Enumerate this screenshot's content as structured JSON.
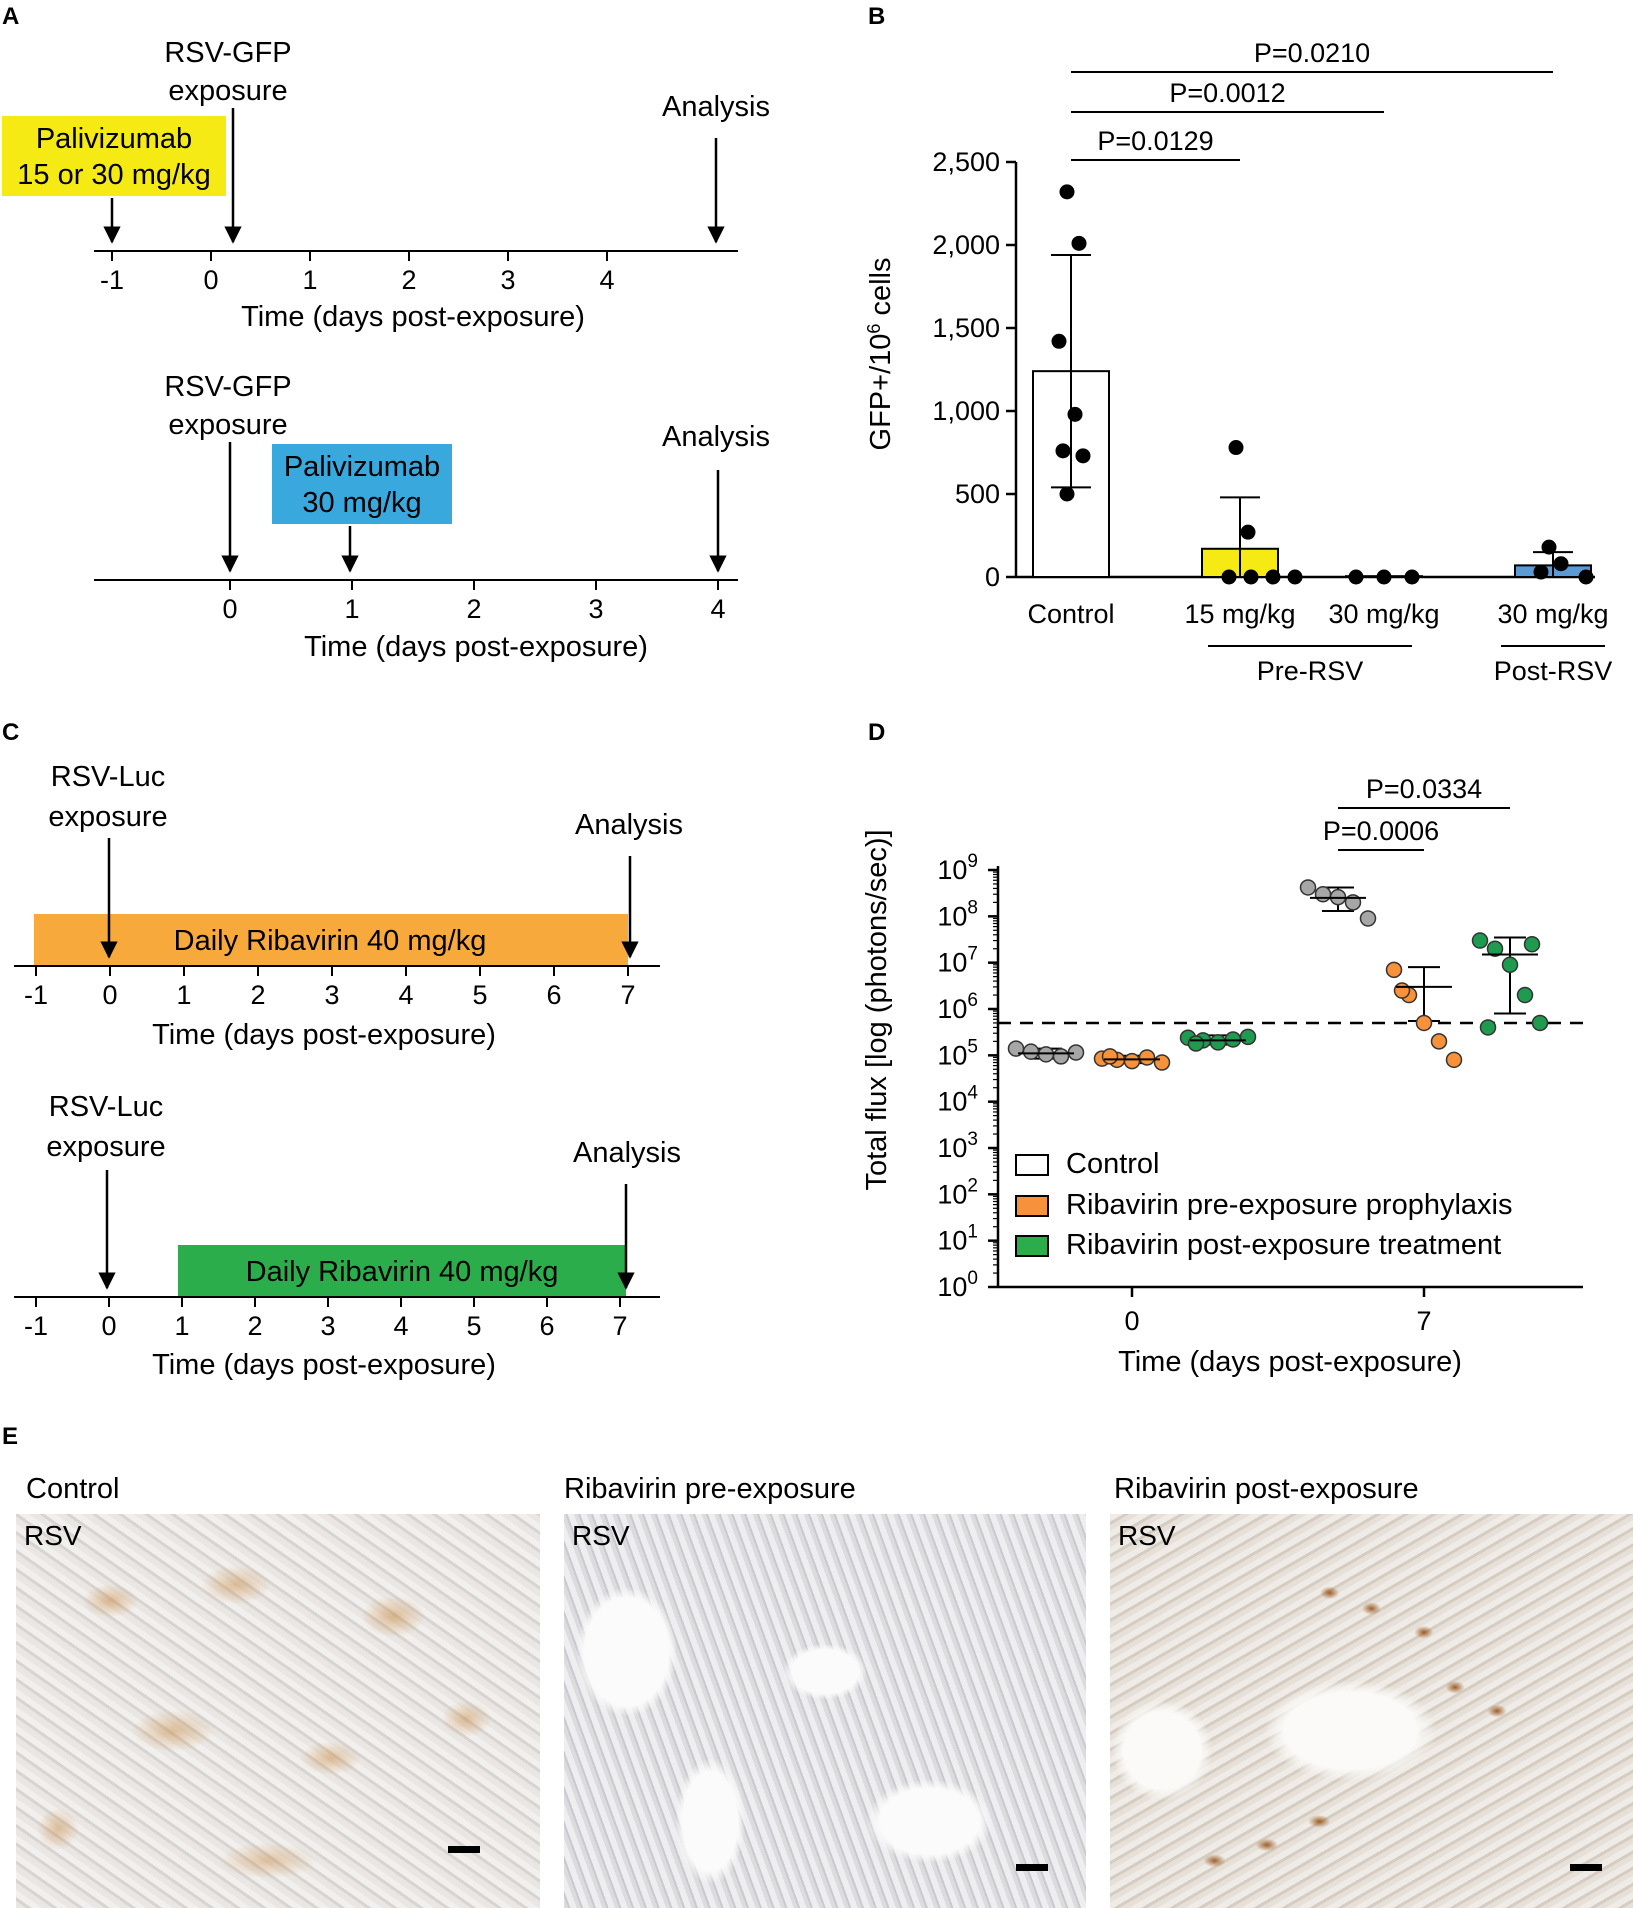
{
  "panel_letters": {
    "a": "A",
    "b": "B",
    "c": "C",
    "d": "D",
    "e": "E"
  },
  "timelines": {
    "axis_label": "Time (days post-exposure)",
    "arrow_analysis": "Analysis",
    "A_top": {
      "ticks": [
        "-1",
        "0",
        "1",
        "2",
        "3",
        "4"
      ],
      "exposure": [
        "RSV-GFP",
        "exposure"
      ],
      "drug": [
        "Palivizumab",
        "15 or 30 mg/kg"
      ],
      "drug_color": "#f5ea14"
    },
    "A_bottom": {
      "ticks": [
        "0",
        "1",
        "2",
        "3",
        "4"
      ],
      "exposure": [
        "RSV-GFP",
        "exposure"
      ],
      "drug": [
        "Palivizumab",
        "30 mg/kg"
      ],
      "drug_color": "#38a8dd"
    },
    "C_top": {
      "ticks": [
        "-1",
        "0",
        "1",
        "2",
        "3",
        "4",
        "5",
        "6",
        "7"
      ],
      "exposure": [
        "RSV-Luc",
        "exposure"
      ],
      "drug": "Daily Ribavirin 40 mg/kg",
      "drug_color": "#f7a93b"
    },
    "C_bottom": {
      "ticks": [
        "-1",
        "0",
        "1",
        "2",
        "3",
        "4",
        "5",
        "6",
        "7"
      ],
      "exposure": [
        "RSV-Luc",
        "exposure"
      ],
      "drug": "Daily Ribavirin 40 mg/kg",
      "drug_color": "#2cad4b"
    }
  },
  "chart_data": [
    {
      "panel": "B",
      "type": "bar",
      "ylabel_main": "GFP+/10",
      "ylabel_sup": "6",
      "ylabel_tail": " cells",
      "ylim": [
        0,
        2500
      ],
      "yticks": [
        "0",
        "500",
        "1,000",
        "1,500",
        "2,000",
        "2,500"
      ],
      "categories": [
        "Control",
        "15 mg/kg",
        "30 mg/kg",
        "30 mg/kg"
      ],
      "groups": [
        "Pre-RSV",
        "Post-RSV"
      ],
      "bars": [
        {
          "mean": 1240,
          "sd": 700,
          "color": "#ffffff",
          "points": [
            2320,
            2010,
            1420,
            980,
            760,
            730,
            500
          ]
        },
        {
          "mean": 170,
          "sd": 310,
          "color": "#f5ea14",
          "points": [
            780,
            270,
            0,
            0,
            0,
            0
          ]
        },
        {
          "mean": 5,
          "sd": 0,
          "color": "#ffffff",
          "points": [
            0,
            0,
            0
          ]
        },
        {
          "mean": 70,
          "sd": 80,
          "color": "#5b9bd5",
          "points": [
            180,
            80,
            30,
            0
          ]
        }
      ],
      "comparisons": [
        {
          "label": "P=0.0129",
          "from": 0,
          "to": 1
        },
        {
          "label": "P=0.0012",
          "from": 0,
          "to": 2
        },
        {
          "label": "P=0.0210",
          "from": 0,
          "to": 3
        }
      ]
    },
    {
      "panel": "D",
      "type": "scatter",
      "xlabel": "Time (days post-exposure)",
      "ylabel": "Total flux [log (photons/sec)]",
      "y_scale": "log",
      "ylim": [
        1,
        1000000000
      ],
      "ytick_base": "10",
      "ytick_exponents": [
        "0",
        "1",
        "2",
        "3",
        "4",
        "5",
        "6",
        "7",
        "8",
        "9"
      ],
      "categories": [
        "0",
        "7"
      ],
      "threshold": 500000,
      "series": [
        {
          "name": "Control",
          "color": "#a6a6a6",
          "day0": {
            "points": [
              140000,
              120000,
              105000,
              95000,
              115000
            ],
            "mean": 110000,
            "sd_low": 85000,
            "sd_high": 140000
          },
          "day7": {
            "points": [
              420000000,
              300000000,
              260000000,
              200000000,
              90000000
            ],
            "mean": 250000000,
            "sd_low": 130000000,
            "sd_high": 420000000
          }
        },
        {
          "name": "Ribavirin pre-exposure prophylaxis",
          "color": "#f7923a",
          "day0": {
            "points": [
              85000,
              80000,
              75000,
              90000,
              70000,
              95000
            ],
            "mean": 82000,
            "sd_low": 68000,
            "sd_high": 98000
          },
          "day7": {
            "points": [
              7000000,
              2000000,
              500000,
              200000,
              80000,
              2500000
            ],
            "mean": 3000000,
            "sd_low": 550000,
            "sd_high": 8000000
          }
        },
        {
          "name": "Ribavirin post-exposure treatment",
          "color": "#1e9b4f",
          "day0": {
            "points": [
              240000,
              210000,
              190000,
              220000,
              250000,
              180000
            ],
            "mean": 210000,
            "sd_low": 170000,
            "sd_high": 270000
          },
          "day7": {
            "points": [
              30000000,
              20000000,
              9000000,
              2000000,
              500000,
              400000,
              25000000
            ],
            "mean": 15000000,
            "sd_low": 800000,
            "sd_high": 35000000
          }
        }
      ],
      "legend_labels": [
        "Control",
        "Ribavirin pre-exposure prophylaxis",
        "Ribavirin post-exposure treatment"
      ],
      "legend_colors": [
        "#ffffff",
        "#f7923a",
        "#2cad4b"
      ],
      "comparisons": [
        {
          "label": "P=0.0006",
          "from": "Control",
          "to": "Ribavirin pre-exposure prophylaxis"
        },
        {
          "label": "P=0.0334",
          "from": "Control",
          "to": "Ribavirin post-exposure treatment"
        }
      ]
    }
  ],
  "micrographs": [
    {
      "title": "Control",
      "tag": "RSV"
    },
    {
      "title": "Ribavirin pre-exposure",
      "tag": "RSV"
    },
    {
      "title": "Ribavirin post-exposure",
      "tag": "RSV"
    }
  ]
}
